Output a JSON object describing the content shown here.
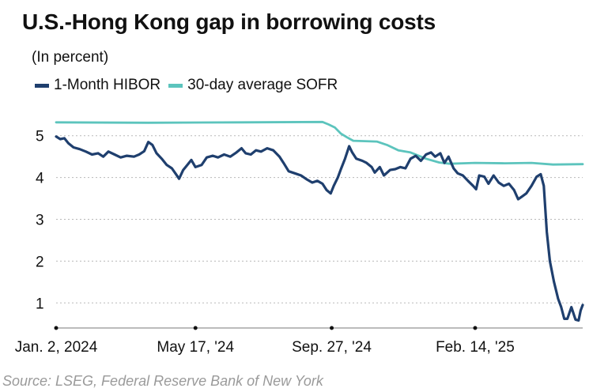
{
  "title": "U.S.-Hong Kong gap in borrowing costs",
  "subtitle": "(In percent)",
  "source": "Source: LSEG, Federal Reserve Bank of New York",
  "colors": {
    "hibor": "#1f3f6e",
    "sofr": "#5cc4bd",
    "grid": "#b8b8b8",
    "axis": "#111111"
  },
  "chart_data": {
    "type": "line",
    "title": "U.S.-Hong Kong gap in borrowing costs",
    "subtitle": "(In percent)",
    "xlabel": "",
    "ylabel": "",
    "ylim": [
      0.4,
      5.6
    ],
    "xlim": [
      "2024-01-02",
      "2025-05-30"
    ],
    "y_ticks": [
      1,
      2,
      3,
      4,
      5
    ],
    "x_ticks": [
      {
        "date": "2024-01-02",
        "label": "Jan. 2, 2024"
      },
      {
        "date": "2024-05-17",
        "label": "May 17, '24"
      },
      {
        "date": "2024-09-27",
        "label": "Sep. 27, '24"
      },
      {
        "date": "2025-02-14",
        "label": "Feb. 14, '25"
      }
    ],
    "grid": true,
    "legend": "top-left",
    "series": [
      {
        "name": "1-Month HIBOR",
        "key": "hibor",
        "points": [
          [
            "2024-01-02",
            4.98
          ],
          [
            "2024-01-06",
            4.92
          ],
          [
            "2024-01-10",
            4.94
          ],
          [
            "2024-01-14",
            4.82
          ],
          [
            "2024-01-19",
            4.72
          ],
          [
            "2024-01-25",
            4.68
          ],
          [
            "2024-01-31",
            4.62
          ],
          [
            "2024-02-06",
            4.55
          ],
          [
            "2024-02-12",
            4.58
          ],
          [
            "2024-02-17",
            4.5
          ],
          [
            "2024-02-22",
            4.62
          ],
          [
            "2024-02-28",
            4.55
          ],
          [
            "2024-03-05",
            4.48
          ],
          [
            "2024-03-11",
            4.52
          ],
          [
            "2024-03-18",
            4.5
          ],
          [
            "2024-03-23",
            4.55
          ],
          [
            "2024-03-28",
            4.63
          ],
          [
            "2024-04-01",
            4.85
          ],
          [
            "2024-04-05",
            4.78
          ],
          [
            "2024-04-09",
            4.58
          ],
          [
            "2024-04-14",
            4.45
          ],
          [
            "2024-04-19",
            4.3
          ],
          [
            "2024-04-24",
            4.22
          ],
          [
            "2024-04-28",
            4.08
          ],
          [
            "2024-05-01",
            3.97
          ],
          [
            "2024-05-05",
            4.18
          ],
          [
            "2024-05-09",
            4.3
          ],
          [
            "2024-05-13",
            4.42
          ],
          [
            "2024-05-17",
            4.25
          ],
          [
            "2024-05-23",
            4.3
          ],
          [
            "2024-05-28",
            4.48
          ],
          [
            "2024-06-03",
            4.52
          ],
          [
            "2024-06-08",
            4.48
          ],
          [
            "2024-06-14",
            4.55
          ],
          [
            "2024-06-20",
            4.5
          ],
          [
            "2024-06-26",
            4.6
          ],
          [
            "2024-07-01",
            4.7
          ],
          [
            "2024-07-05",
            4.58
          ],
          [
            "2024-07-10",
            4.55
          ],
          [
            "2024-07-15",
            4.65
          ],
          [
            "2024-07-20",
            4.62
          ],
          [
            "2024-07-26",
            4.7
          ],
          [
            "2024-08-01",
            4.65
          ],
          [
            "2024-08-07",
            4.5
          ],
          [
            "2024-08-11",
            4.35
          ],
          [
            "2024-08-16",
            4.15
          ],
          [
            "2024-08-22",
            4.1
          ],
          [
            "2024-08-28",
            4.05
          ],
          [
            "2024-09-03",
            3.95
          ],
          [
            "2024-09-08",
            3.88
          ],
          [
            "2024-09-13",
            3.92
          ],
          [
            "2024-09-18",
            3.85
          ],
          [
            "2024-09-22",
            3.7
          ],
          [
            "2024-09-26",
            3.62
          ],
          [
            "2024-09-29",
            3.8
          ],
          [
            "2024-10-03",
            4.0
          ],
          [
            "2024-10-06",
            4.2
          ],
          [
            "2024-10-10",
            4.45
          ],
          [
            "2024-10-14",
            4.75
          ],
          [
            "2024-10-17",
            4.6
          ],
          [
            "2024-10-21",
            4.45
          ],
          [
            "2024-10-27",
            4.4
          ],
          [
            "2024-10-31",
            4.35
          ],
          [
            "2024-11-05",
            4.25
          ],
          [
            "2024-11-08",
            4.12
          ],
          [
            "2024-11-13",
            4.25
          ],
          [
            "2024-11-17",
            4.05
          ],
          [
            "2024-11-23",
            4.18
          ],
          [
            "2024-11-28",
            4.2
          ],
          [
            "2024-12-03",
            4.25
          ],
          [
            "2024-12-08",
            4.22
          ],
          [
            "2024-12-13",
            4.45
          ],
          [
            "2024-12-18",
            4.52
          ],
          [
            "2024-12-23",
            4.4
          ],
          [
            "2024-12-28",
            4.55
          ],
          [
            "2025-01-02",
            4.6
          ],
          [
            "2025-01-06",
            4.5
          ],
          [
            "2025-01-11",
            4.58
          ],
          [
            "2025-01-15",
            4.35
          ],
          [
            "2025-01-19",
            4.5
          ],
          [
            "2025-01-24",
            4.22
          ],
          [
            "2025-01-28",
            4.1
          ],
          [
            "2025-02-02",
            4.05
          ],
          [
            "2025-02-07",
            3.92
          ],
          [
            "2025-02-12",
            3.8
          ],
          [
            "2025-02-15",
            3.72
          ],
          [
            "2025-02-18",
            4.05
          ],
          [
            "2025-02-23",
            4.02
          ],
          [
            "2025-02-27",
            3.85
          ],
          [
            "2025-03-04",
            4.05
          ],
          [
            "2025-03-09",
            3.88
          ],
          [
            "2025-03-14",
            3.8
          ],
          [
            "2025-03-19",
            3.85
          ],
          [
            "2025-03-24",
            3.7
          ],
          [
            "2025-03-28",
            3.48
          ],
          [
            "2025-04-01",
            3.55
          ],
          [
            "2025-04-05",
            3.62
          ],
          [
            "2025-04-10",
            3.8
          ],
          [
            "2025-04-15",
            4.02
          ],
          [
            "2025-04-19",
            4.08
          ],
          [
            "2025-04-22",
            3.8
          ],
          [
            "2025-04-25",
            2.7
          ],
          [
            "2025-04-28",
            2.0
          ],
          [
            "2025-05-02",
            1.5
          ],
          [
            "2025-05-06",
            1.1
          ],
          [
            "2025-05-09",
            0.9
          ],
          [
            "2025-05-12",
            0.62
          ],
          [
            "2025-05-15",
            0.62
          ],
          [
            "2025-05-19",
            0.9
          ],
          [
            "2025-05-23",
            0.6
          ],
          [
            "2025-05-26",
            0.58
          ],
          [
            "2025-05-28",
            0.82
          ],
          [
            "2025-05-30",
            0.95
          ]
        ]
      },
      {
        "name": "30-day average SOFR",
        "key": "sofr",
        "points": [
          [
            "2024-01-02",
            5.32
          ],
          [
            "2024-04-01",
            5.31
          ],
          [
            "2024-07-01",
            5.32
          ],
          [
            "2024-09-18",
            5.33
          ],
          [
            "2024-09-24",
            5.27
          ],
          [
            "2024-09-30",
            5.2
          ],
          [
            "2024-10-06",
            5.05
          ],
          [
            "2024-10-12",
            4.96
          ],
          [
            "2024-10-18",
            4.88
          ],
          [
            "2024-11-10",
            4.86
          ],
          [
            "2024-11-20",
            4.78
          ],
          [
            "2024-12-01",
            4.65
          ],
          [
            "2024-12-13",
            4.6
          ],
          [
            "2024-12-28",
            4.45
          ],
          [
            "2025-01-10",
            4.36
          ],
          [
            "2025-01-20",
            4.33
          ],
          [
            "2025-02-14",
            4.35
          ],
          [
            "2025-03-15",
            4.34
          ],
          [
            "2025-04-10",
            4.35
          ],
          [
            "2025-05-01",
            4.31
          ],
          [
            "2025-05-30",
            4.32
          ]
        ]
      }
    ]
  }
}
